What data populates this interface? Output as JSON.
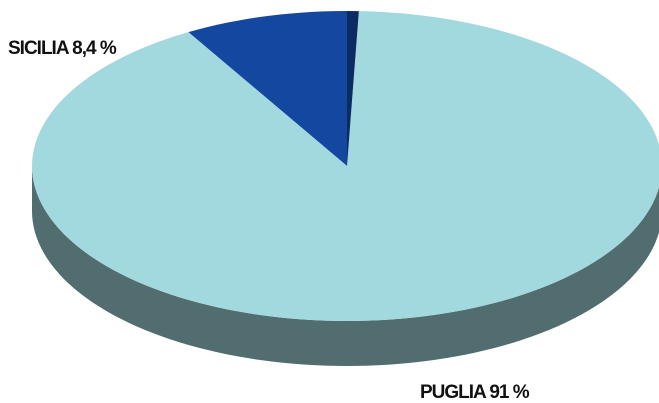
{
  "chart_data": {
    "type": "pie",
    "three_d": true,
    "categories": [
      "SICILIA",
      "PUGLIA",
      null
    ],
    "values": [
      8.4,
      91,
      0.6
    ],
    "value_labels": [
      "8,4 %",
      "91 %",
      null
    ],
    "colors": [
      "#1448a0",
      "#a2d9df",
      "#0b2b62"
    ]
  }
}
